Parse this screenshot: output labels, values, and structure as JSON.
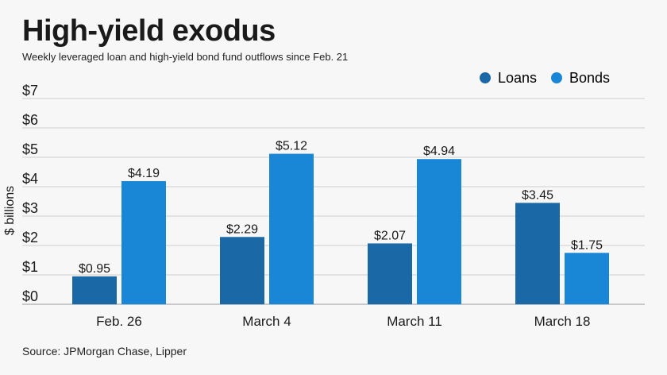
{
  "header": {
    "title": "High-yield exodus",
    "subtitle": "Weekly leveraged loan and high-yield bond fund outflows since Feb. 21"
  },
  "footer": {
    "source": "Source: JPMorgan Chase, Lipper"
  },
  "chart_data": {
    "type": "bar",
    "title": "High-yield exodus",
    "subtitle": "Weekly leveraged loan and high-yield bond fund outflows since Feb. 21",
    "xlabel": "",
    "ylabel": "$ billions",
    "categories": [
      "Feb. 26",
      "March 4",
      "March 11",
      "March 18"
    ],
    "series": [
      {
        "name": "Loans",
        "values": [
          0.95,
          2.29,
          2.07,
          3.45
        ],
        "labels": [
          "$0.95",
          "$2.29",
          "$2.07",
          "$3.45"
        ],
        "color": "#1b68a6"
      },
      {
        "name": "Bonds",
        "values": [
          4.19,
          5.12,
          4.94,
          1.75
        ],
        "labels": [
          "$4.19",
          "$5.12",
          "$4.94",
          "$1.75"
        ],
        "color": "#1a86d6"
      }
    ],
    "ylim": [
      0,
      7
    ],
    "yticks": [
      0,
      1,
      2,
      3,
      4,
      5,
      6,
      7
    ],
    "ytick_labels": [
      "$0",
      "$1",
      "$2",
      "$3",
      "$4",
      "$5",
      "$6",
      "$7"
    ],
    "grid": true,
    "legend": "top-right"
  }
}
